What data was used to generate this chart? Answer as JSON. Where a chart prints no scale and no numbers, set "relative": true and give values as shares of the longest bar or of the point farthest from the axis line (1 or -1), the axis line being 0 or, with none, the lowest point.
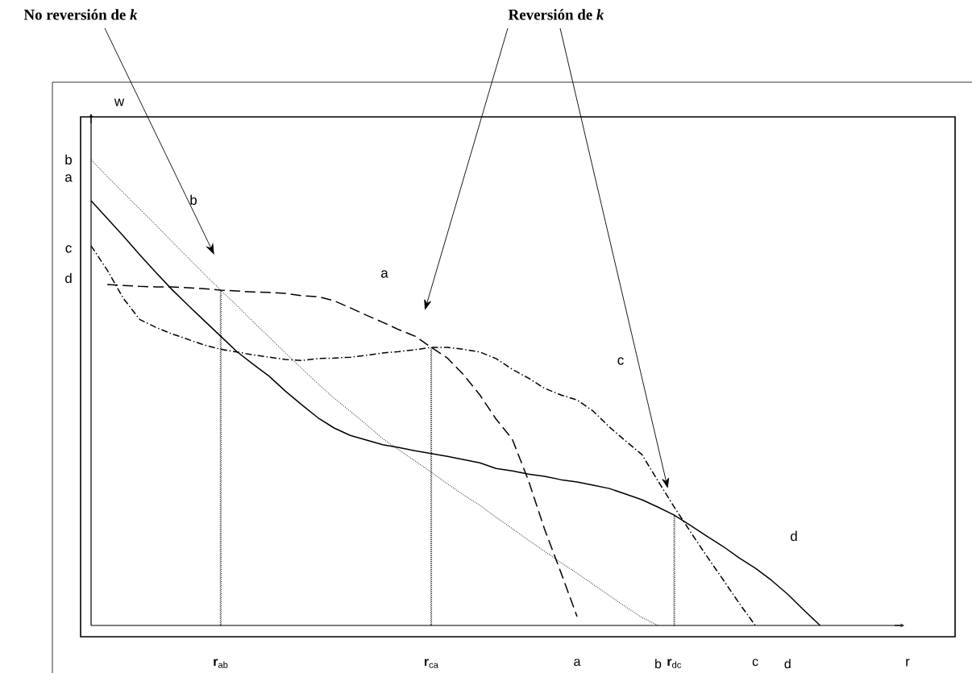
{
  "chart_data": {
    "type": "line",
    "relative": true,
    "xlabel": "r",
    "ylabel": "w",
    "categories": [
      null,
      null,
      null,
      null,
      null,
      null,
      null,
      null,
      "**r**$_{ab}$",
      null,
      null,
      null,
      null,
      null,
      null,
      null,
      null,
      null,
      null,
      null,
      null,
      "**r**$_{ca}$",
      null,
      null,
      null,
      null,
      null,
      null,
      null,
      null,
      "a",
      null,
      null,
      null,
      null,
      "b",
      "**r**$_{dc}$",
      null,
      null,
      null,
      null,
      "c",
      null,
      "d",
      null,
      null,
      null,
      null,
      null,
      null,
      null
    ],
    "series": [
      {
        "color": "#000000",
        "line_style": "dashed",
        "values": [
          null,
          0.732,
          0.73,
          0.728,
          0.727,
          0.727,
          0.725,
          0.723,
          0.72,
          0.718,
          0.716,
          0.715,
          0.713,
          0.708,
          0.706,
          0.697,
          0.682,
          0.666,
          0.651,
          0.635,
          0.621,
          0.597,
          0.574,
          0.538,
          0.495,
          0.443,
          0.4,
          0.311,
          0.206,
          0.114,
          0.019,
          null,
          null,
          null,
          null,
          null,
          null,
          null,
          null,
          null,
          null,
          null,
          null,
          null,
          null,
          null,
          null,
          null,
          null,
          null,
          null
        ]
      },
      {
        "color": "#000000",
        "line_style": "dotted",
        "values": [
          1.0,
          0.964,
          0.929,
          0.894,
          0.86,
          0.824,
          0.789,
          0.754,
          0.72,
          0.687,
          0.652,
          0.619,
          0.585,
          0.552,
          0.519,
          0.488,
          0.46,
          0.431,
          0.401,
          0.377,
          0.353,
          0.329,
          0.304,
          0.28,
          0.258,
          0.232,
          0.208,
          0.183,
          0.159,
          0.135,
          0.112,
          0.088,
          0.064,
          0.04,
          0.017,
          0,
          null,
          null,
          null,
          null,
          null,
          null,
          null,
          null,
          null,
          null,
          null,
          null,
          null,
          null,
          null
        ]
      },
      {
        "color": "#000000",
        "line_style": "dashdot",
        "values": [
          0.815,
          0.763,
          0.702,
          0.657,
          0.64,
          0.626,
          0.614,
          0.602,
          0.593,
          0.587,
          0.581,
          0.576,
          0.571,
          0.569,
          0.573,
          0.574,
          0.576,
          0.58,
          0.585,
          0.588,
          0.592,
          0.597,
          0.597,
          0.593,
          0.587,
          0.573,
          0.55,
          0.531,
          0.509,
          0.495,
          0.484,
          0.46,
          0.426,
          0.396,
          0.367,
          0.31,
          0.254,
          0.201,
          0.149,
          0.099,
          0.048,
          0,
          null,
          null,
          null,
          null,
          null,
          null,
          null,
          null,
          null
        ]
      },
      {
        "color": "#000000",
        "line_style": "solid",
        "values": [
          0.912,
          0.874,
          0.836,
          0.796,
          0.758,
          0.721,
          0.687,
          0.654,
          0.621,
          0.588,
          0.561,
          0.535,
          0.503,
          0.474,
          0.446,
          0.424,
          0.408,
          0.398,
          0.388,
          0.382,
          0.375,
          0.369,
          0.363,
          0.356,
          0.349,
          0.337,
          0.332,
          0.325,
          0.32,
          0.313,
          0.308,
          0.301,
          0.294,
          0.282,
          0.27,
          0.254,
          0.237,
          0.215,
          0.192,
          0.17,
          0.145,
          0.123,
          0.097,
          0.067,
          0.033,
          0,
          null,
          null,
          null,
          null,
          null
        ]
      },
      {
        "type": "bar",
        "color": "#000000",
        "line_style": "dotted",
        "values": [
          null,
          null,
          null,
          null,
          null,
          null,
          null,
          null,
          0.72,
          null,
          null,
          null,
          null,
          null,
          null,
          null,
          null,
          null,
          null,
          null,
          null,
          null,
          null,
          null,
          null,
          null,
          null,
          null,
          null,
          null,
          null,
          null,
          null,
          null,
          null,
          null,
          null,
          null,
          null,
          null,
          null,
          null,
          null,
          null,
          null,
          null,
          null,
          null,
          null,
          null,
          null
        ]
      },
      {
        "type": "bar",
        "color": "#000000",
        "line_style": "dotted",
        "values": [
          null,
          null,
          null,
          null,
          null,
          null,
          null,
          null,
          null,
          null,
          null,
          null,
          null,
          null,
          null,
          null,
          null,
          null,
          null,
          null,
          null,
          0.597,
          null,
          null,
          null,
          null,
          null,
          null,
          null,
          null,
          null,
          null,
          null,
          null,
          null,
          null,
          null,
          null,
          null,
          null,
          null,
          null,
          null,
          null,
          null,
          null,
          null,
          null,
          null,
          null,
          null
        ]
      },
      {
        "type": "bar",
        "color": "#000000",
        "line_style": "dotted",
        "values": [
          null,
          null,
          null,
          null,
          null,
          null,
          null,
          null,
          null,
          null,
          null,
          null,
          null,
          null,
          null,
          null,
          null,
          null,
          null,
          null,
          null,
          null,
          null,
          null,
          null,
          null,
          null,
          null,
          null,
          null,
          null,
          null,
          null,
          null,
          null,
          null,
          0.237,
          null,
          null,
          null,
          null,
          null,
          null,
          null,
          null,
          null,
          null,
          null,
          null,
          null,
          null
        ]
      }
    ],
    "annotations": [
      "No reversión de *k*",
      "Reversión de *k*",
      "b",
      "a",
      "c",
      "d",
      "b",
      "a",
      "c",
      "d"
    ]
  }
}
